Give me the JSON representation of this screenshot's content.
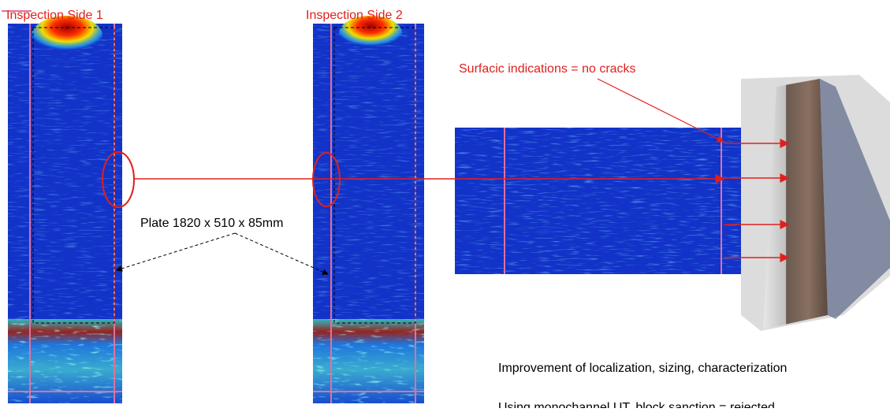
{
  "labels": {
    "side1": "Inspection Side 1",
    "side2": "Inspection Side 2",
    "surface": "Surfacic indications = no cracks",
    "plate": "Plate 1820 x 510 x 85mm",
    "improvement": "Improvement of localization, sizing, characterization",
    "monochannel": "Using monochannel UT, block sanction = rejected"
  }
}
